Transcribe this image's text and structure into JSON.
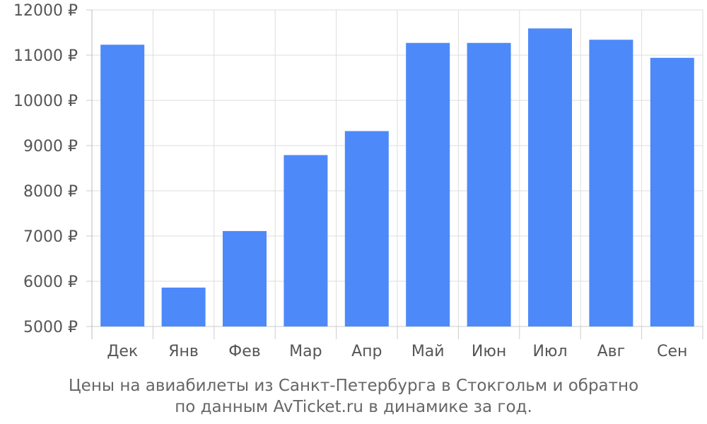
{
  "chart_data": {
    "type": "bar",
    "categories": [
      "Дек",
      "Янв",
      "Фев",
      "Мар",
      "Апр",
      "Май",
      "Июн",
      "Июл",
      "Авг",
      "Сен"
    ],
    "values": [
      11230,
      5860,
      7110,
      8790,
      9320,
      11270,
      11270,
      11590,
      11340,
      10940
    ],
    "ylim": [
      5000,
      12000
    ],
    "yticks": [
      5000,
      6000,
      7000,
      8000,
      9000,
      10000,
      11000,
      12000
    ],
    "ytick_suffix": " ₽",
    "bar_color": "#4d89f9",
    "grid": true,
    "caption_line1": "Цены на авиабилеты из Санкт-Петербурга в Стокгольм и обратно",
    "caption_line2": "по данным AvTicket.ru в динамике за год."
  }
}
